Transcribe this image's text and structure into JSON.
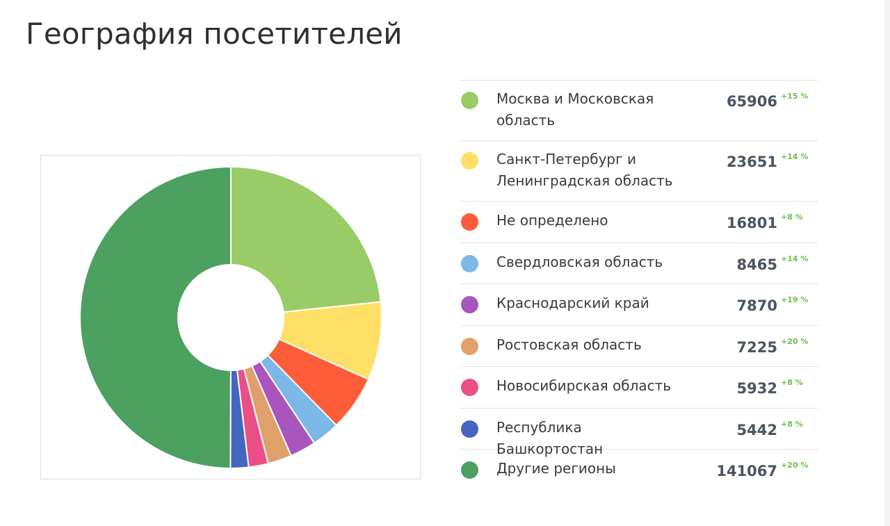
{
  "page": {
    "title": "География посетителей"
  },
  "chart_data": {
    "type": "pie",
    "style": "donut",
    "categories": [
      "Москва и Московская область",
      "Санкт-Петербург и Ленинградская область",
      "Не определено",
      "Свердловская область",
      "Краснодарский край",
      "Ростовская область",
      "Новосибирская область",
      "Республика Башкортостан",
      "Другие регионы"
    ],
    "values": [
      65906,
      23651,
      16801,
      8465,
      7870,
      7225,
      5932,
      5442,
      141067
    ],
    "changes": [
      "+15 %",
      "+14 %",
      "+8 %",
      "+14 %",
      "+19 %",
      "+20 %",
      "+8 %",
      "+8 %",
      "+20 %"
    ],
    "colors": [
      "#99cc66",
      "#ffe066",
      "#ff5c3a",
      "#7cb8e8",
      "#a855bd",
      "#e0a06c",
      "#ea4f86",
      "#4466c0",
      "#4ca060"
    ],
    "legend_position": "right"
  }
}
